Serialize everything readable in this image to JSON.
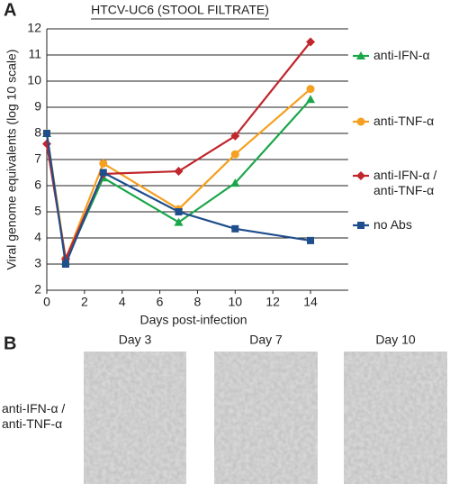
{
  "chart_data": {
    "type": "line",
    "panel_label": "A",
    "title": "HTCV-UC6 (STOOL FILTRATE)",
    "y_label": "Viral genome equivalents (log 10 scale)",
    "x_label": "Days post-infection",
    "x": [
      0,
      1,
      3,
      7,
      10,
      14
    ],
    "xlim": [
      0,
      16
    ],
    "ylim": [
      2,
      12
    ],
    "xticks": [
      0,
      2,
      4,
      6,
      8,
      10,
      12,
      14
    ],
    "yticks": [
      2,
      3,
      4,
      5,
      6,
      7,
      8,
      9,
      10,
      11,
      12
    ],
    "grid": true,
    "series": [
      {
        "name": "anti-IFN-α",
        "color": "#1aa64a",
        "marker": "triangle",
        "values": [
          8.0,
          3.1,
          6.3,
          4.6,
          6.1,
          9.3
        ]
      },
      {
        "name": "anti-TNF-α",
        "color": "#f5a020",
        "marker": "circle",
        "values": [
          8.0,
          3.2,
          6.85,
          5.1,
          7.2,
          9.7
        ]
      },
      {
        "name": "anti-IFN-α / anti-TNF-α",
        "color": "#c0272d",
        "marker": "diamond",
        "values": [
          7.6,
          3.2,
          6.45,
          6.55,
          7.9,
          11.5
        ]
      },
      {
        "name": "no Abs",
        "color": "#1f4e8c",
        "marker": "square",
        "values": [
          8.0,
          3.0,
          6.5,
          5.0,
          4.35,
          3.9
        ]
      }
    ]
  },
  "panel_b": {
    "label": "B",
    "row_label": "anti-IFN-α / anti-TNF-α",
    "columns": [
      "Day 3",
      "Day 7",
      "Day 10"
    ]
  }
}
